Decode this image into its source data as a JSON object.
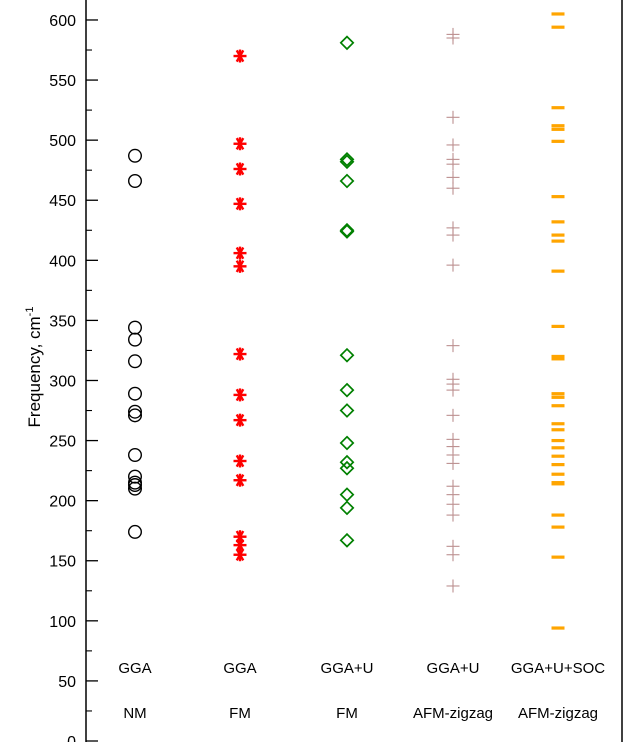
{
  "chart_data": {
    "type": "scatter",
    "title": "",
    "xlabel": "",
    "ylabel": "Frequency, cm",
    "ylabel_superscript": "-1",
    "ylim": [
      0,
      610
    ],
    "yticks": [
      0,
      50,
      100,
      150,
      200,
      250,
      300,
      350,
      400,
      450,
      500,
      550,
      600
    ],
    "minor_tick_step": 25,
    "grid": false,
    "legend": "none",
    "series": [
      {
        "labels": [
          "GGA",
          "NM"
        ],
        "marker": "circle",
        "color": "#000000",
        "values": [
          174,
          210,
          213,
          215,
          220,
          238,
          271,
          274,
          289,
          316,
          334,
          344,
          466,
          487
        ]
      },
      {
        "labels": [
          "GGA",
          "FM"
        ],
        "marker": "asterisk",
        "color": "#ff0000",
        "values": [
          155,
          163,
          170,
          217,
          233,
          267,
          288,
          322,
          395,
          406,
          447,
          476,
          497,
          570
        ]
      },
      {
        "labels": [
          "GGA+U",
          "FM"
        ],
        "marker": "diamond",
        "color": "#008000",
        "values": [
          167,
          194,
          205,
          227,
          232,
          248,
          275,
          292,
          321,
          424,
          425,
          466,
          482,
          484,
          581
        ]
      },
      {
        "labels": [
          "GGA+U",
          "AFM-zigzag"
        ],
        "marker": "plus",
        "color": "#bc8f8f",
        "values": [
          129,
          155,
          162,
          188,
          197,
          205,
          212,
          231,
          238,
          245,
          251,
          271,
          292,
          297,
          301,
          329,
          396,
          421,
          427,
          460,
          469,
          480,
          484,
          496,
          519,
          585,
          588
        ]
      },
      {
        "labels": [
          "GGA+U+SOC",
          "AFM-zigzag"
        ],
        "marker": "dash",
        "color": "#ffa500",
        "values": [
          94,
          153,
          178,
          188,
          214,
          215,
          222,
          230,
          237,
          244,
          250,
          259,
          264,
          279,
          286,
          289,
          318,
          320,
          345,
          391,
          416,
          421,
          432,
          453,
          499,
          509,
          512,
          527,
          594,
          605
        ]
      }
    ]
  }
}
